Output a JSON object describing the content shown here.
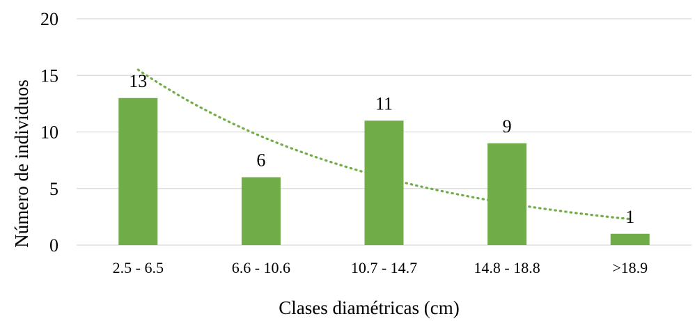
{
  "chart_data": {
    "type": "bar",
    "title": "",
    "xlabel": "Clases diamétricas (cm)",
    "ylabel": "Número de individuos",
    "categories": [
      "2.5 - 6.5",
      "6.6 - 10.6",
      "10.7 - 14.7",
      "14.8 - 18.8",
      ">18.9"
    ],
    "values": [
      13,
      6,
      11,
      9,
      1
    ],
    "data_labels": [
      "13",
      "6",
      "11",
      "9",
      "1"
    ],
    "ylim": [
      0,
      20
    ],
    "yticks": [
      "0",
      "5",
      "10",
      "15",
      "20"
    ],
    "grid": true,
    "legend": "none",
    "bar_color": "#70ad47",
    "trendline": {
      "type": "exponential",
      "style": "dotted",
      "color": "#70ad47",
      "start": 15.5,
      "end": 2.3
    }
  }
}
